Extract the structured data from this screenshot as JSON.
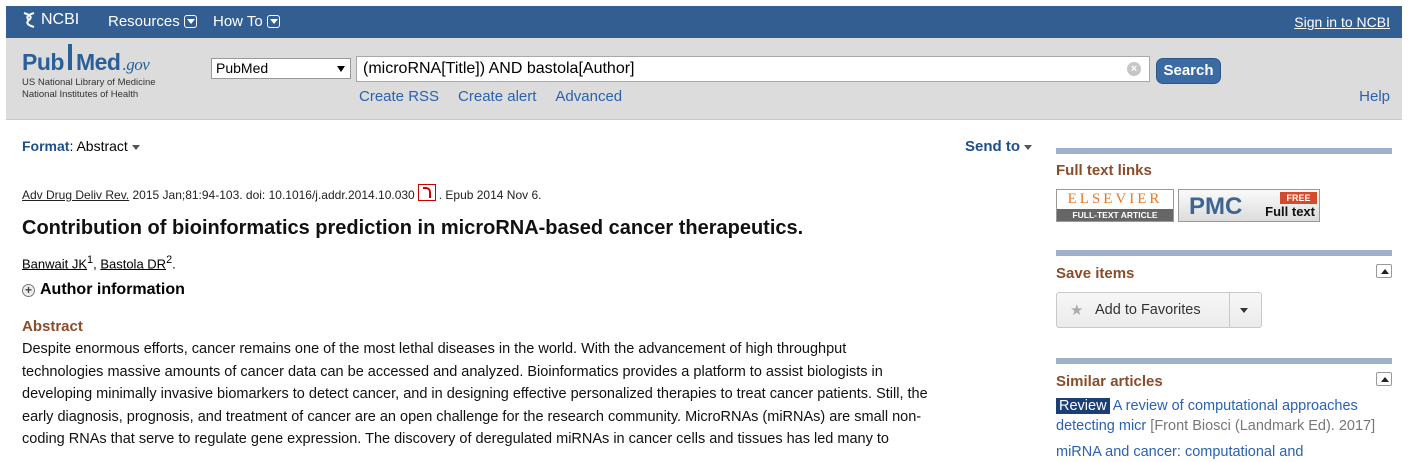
{
  "ncbi_bar": {
    "logo_text": "NCBI",
    "resources": "Resources",
    "how_to": "How To",
    "sign_in": "Sign in to NCBI",
    "color": "#335e91"
  },
  "search": {
    "logo_pub": "Pub",
    "logo_med": "Med",
    "logo_gov": ".gov",
    "logo_sub1": "US National Library of Medicine",
    "logo_sub2": "National Institutes of Health",
    "database": "PubMed",
    "query": "(microRNA[Title]) AND bastola[Author]",
    "clear_glyph": "×",
    "button": "Search",
    "links": [
      "Create RSS",
      "Create alert",
      "Advanced"
    ],
    "help": "Help"
  },
  "article": {
    "format_label": "Format",
    "format_colon": ":",
    "format_value": "Abstract",
    "send_to": "Send to",
    "journal": "Adv Drug Deliv Rev.",
    "citation_rest": " 2015 Jan;81:94-103. doi: 10.1016/j.addr.2014.10.030",
    "epub": ". Epub 2014 Nov 6.",
    "title": "Contribution of bioinformatics prediction in microRNA-based cancer therapeutics.",
    "authors": [
      {
        "name": "Banwait JK",
        "sup": "1",
        "after": ", "
      },
      {
        "name": "Bastola DR",
        "sup": "2",
        "after": "."
      }
    ],
    "author_information": "Author information",
    "abstract_heading": "Abstract",
    "abstract_lines": [
      "Despite enormous efforts, cancer remains one of the most lethal diseases in the world. With the advancement of high throughput",
      "technologies massive amounts of cancer data can be accessed and analyzed. Bioinformatics provides a platform to assist biologists in",
      "developing minimally invasive biomarkers to detect cancer, and in designing effective personalized therapies to treat cancer patients. Still, the",
      "early diagnosis, prognosis, and treatment of cancer are an open challenge for the research community. MicroRNAs (miRNAs) are small non-",
      "coding RNAs that serve to regulate gene expression. The discovery of deregulated miRNAs in cancer cells and tissues has led many to"
    ]
  },
  "sidebar": {
    "full_text_title": "Full text links",
    "elsevier_name": "ELSEVIER",
    "elsevier_caption": "FULL-TEXT ARTICLE",
    "pmc_label": "PMC",
    "pmc_free": "FREE",
    "pmc_fulltext": "Full text",
    "save_title": "Save items",
    "add_favorites": "Add to Favorites",
    "similar_title": "Similar articles",
    "similar": [
      {
        "badge": "Review",
        "title_line1": " A review of computational approaches",
        "title_line2": "detecting micr",
        "source": " [Front Biosci (Landmark Ed). 2017]"
      },
      {
        "badge": "",
        "title_line1": "miRNA and cancer: computational and",
        "title_line2": "",
        "source": ""
      }
    ]
  }
}
